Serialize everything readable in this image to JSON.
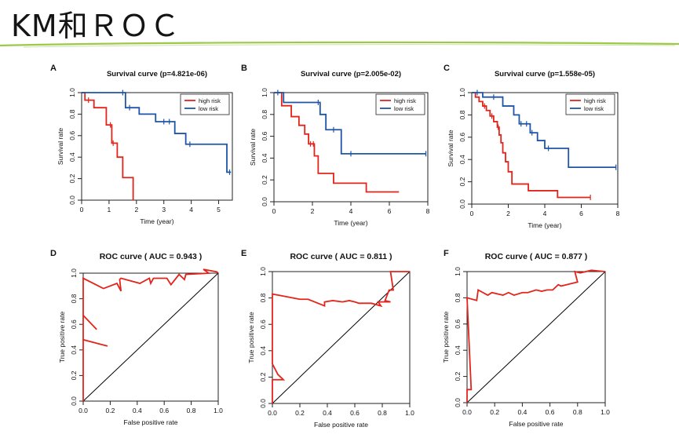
{
  "slide": {
    "title": "KM和ＲＯＣ"
  },
  "colors": {
    "high_risk": "#e3241b",
    "low_risk": "#1f55a6",
    "diagonal": "#000000",
    "accent_line": "#9cc94a"
  },
  "chart_data": [
    {
      "id": "A",
      "type": "line",
      "letter": "A",
      "title": "Survival curve (p=4.821e-06)",
      "xlabel": "Time (year)",
      "ylabel": "Survival rate",
      "xlim": [
        0,
        5.5
      ],
      "ylim": [
        0,
        1.0
      ],
      "xticks": [
        0,
        1,
        2,
        3,
        4,
        5
      ],
      "yticks": [
        0.0,
        0.2,
        0.4,
        0.6,
        0.8,
        1.0
      ],
      "legend": {
        "position": "top-right",
        "entries": [
          "high risk",
          "low risk"
        ]
      },
      "series": [
        {
          "name": "high risk",
          "color_key": "high_risk",
          "step": true,
          "x": [
            0,
            0.12,
            0.45,
            0.9,
            1.1,
            1.3,
            1.5,
            1.88,
            1.88
          ],
          "y": [
            1.0,
            0.93,
            0.86,
            0.7,
            0.53,
            0.4,
            0.21,
            0.21,
            0.0
          ],
          "censor_x": [
            0.25,
            1.05,
            1.15
          ]
        },
        {
          "name": "low risk",
          "color_key": "low_risk",
          "step": true,
          "x": [
            0,
            1.6,
            2.1,
            2.7,
            3.4,
            3.8,
            5.3,
            5.45
          ],
          "y": [
            1.0,
            0.86,
            0.8,
            0.73,
            0.62,
            0.52,
            0.26,
            0.26
          ],
          "censor_x": [
            1.5,
            1.75,
            3.0,
            3.2,
            3.95,
            5.4
          ]
        }
      ]
    },
    {
      "id": "B",
      "type": "line",
      "letter": "B",
      "title": "Survival curve (p=2.005e-02)",
      "xlabel": "Time (year)",
      "ylabel": "Survival rate",
      "xlim": [
        0,
        8
      ],
      "ylim": [
        0,
        1.0
      ],
      "xticks": [
        0,
        2,
        4,
        6,
        8
      ],
      "yticks": [
        0.0,
        0.2,
        0.4,
        0.6,
        0.8,
        1.0
      ],
      "legend": {
        "position": "top-right",
        "entries": [
          "high risk",
          "low risk"
        ]
      },
      "series": [
        {
          "name": "high risk",
          "color_key": "high_risk",
          "step": true,
          "x": [
            0,
            0.4,
            0.9,
            1.3,
            1.6,
            1.8,
            2.1,
            2.3,
            3.1,
            4.8,
            6.5
          ],
          "y": [
            1.0,
            0.88,
            0.78,
            0.7,
            0.62,
            0.53,
            0.42,
            0.26,
            0.17,
            0.09,
            0.09
          ],
          "censor_x": [
            1.9,
            2.05
          ]
        },
        {
          "name": "low risk",
          "color_key": "low_risk",
          "step": true,
          "x": [
            0,
            0.5,
            2.4,
            2.7,
            3.5,
            7.9
          ],
          "y": [
            1.0,
            0.91,
            0.8,
            0.66,
            0.44,
            0.44
          ],
          "censor_x": [
            0.2,
            2.3,
            3.1,
            4.0,
            7.9
          ]
        }
      ]
    },
    {
      "id": "C",
      "type": "line",
      "letter": "C",
      "title": "Survival curve (p=1.558e-05)",
      "xlabel": "Time (year)",
      "ylabel": "Survival rate",
      "xlim": [
        0,
        8
      ],
      "ylim": [
        0,
        1.0
      ],
      "xticks": [
        0,
        2,
        4,
        6,
        8
      ],
      "yticks": [
        0.0,
        0.2,
        0.4,
        0.6,
        0.8,
        1.0
      ],
      "legend": {
        "position": "top-right",
        "entries": [
          "high risk",
          "low risk"
        ]
      },
      "series": [
        {
          "name": "high risk",
          "color_key": "high_risk",
          "step": true,
          "x": [
            0,
            0.2,
            0.4,
            0.6,
            0.8,
            1.0,
            1.2,
            1.4,
            1.5,
            1.6,
            1.7,
            1.85,
            2.0,
            2.2,
            3.1,
            4.7,
            6.5
          ],
          "y": [
            1.0,
            0.96,
            0.92,
            0.88,
            0.84,
            0.79,
            0.74,
            0.69,
            0.62,
            0.55,
            0.46,
            0.38,
            0.29,
            0.18,
            0.12,
            0.06,
            0.06
          ],
          "censor_x": [
            0.7,
            1.1,
            1.45,
            6.5
          ]
        },
        {
          "name": "low risk",
          "color_key": "low_risk",
          "step": true,
          "x": [
            0,
            0.6,
            1.7,
            2.3,
            2.6,
            3.2,
            3.6,
            4.0,
            5.3,
            7.9
          ],
          "y": [
            1.0,
            0.96,
            0.88,
            0.8,
            0.72,
            0.64,
            0.57,
            0.5,
            0.33,
            0.33
          ],
          "censor_x": [
            0.3,
            1.2,
            2.7,
            3.0,
            3.3,
            4.2,
            7.9
          ]
        }
      ]
    },
    {
      "id": "D",
      "type": "line",
      "letter": "D",
      "title": "ROC curve ( AUC =  0.943 )",
      "xlabel": "False positive rate",
      "ylabel": "True positive rate",
      "xlim": [
        0,
        1.0
      ],
      "ylim": [
        0,
        1.0
      ],
      "xticks": [
        0.0,
        0.2,
        0.4,
        0.6,
        0.8,
        1.0
      ],
      "yticks": [
        0.0,
        0.2,
        0.4,
        0.6,
        0.8,
        1.0
      ],
      "diagonal": true,
      "series": [
        {
          "name": "",
          "color_key": "high_risk",
          "step": false,
          "x": [
            0,
            0.0,
            0.18,
            0.0,
            0.0,
            0.1,
            0.0,
            0.0,
            0.15,
            0.25,
            0.28,
            0.27,
            0.28,
            0.42,
            0.49,
            0.5,
            0.52,
            0.62,
            0.65,
            0.71,
            0.75,
            0.76,
            0.93,
            0.89,
            0.99,
            1.0
          ],
          "y": [
            0,
            0.48,
            0.43,
            0.48,
            0.67,
            0.56,
            0.67,
            0.96,
            0.88,
            0.92,
            0.86,
            0.95,
            0.96,
            0.92,
            0.96,
            0.92,
            0.96,
            0.96,
            0.91,
            0.99,
            0.95,
            0.99,
            1.0,
            1.03,
            1.01,
            1.0
          ]
        }
      ]
    },
    {
      "id": "E",
      "type": "line",
      "letter": "E",
      "title": "ROC curve ( AUC =  0.811 )",
      "xlabel": "False positive rate",
      "ylabel": "True positive rate",
      "xlim": [
        0,
        1.0
      ],
      "ylim": [
        0,
        1.0
      ],
      "xticks": [
        0.0,
        0.2,
        0.4,
        0.6,
        0.8,
        1.0
      ],
      "yticks": [
        0.0,
        0.2,
        0.4,
        0.6,
        0.8,
        1.0
      ],
      "diagonal": true,
      "series": [
        {
          "name": "",
          "color_key": "high_risk",
          "step": false,
          "x": [
            0,
            0.0,
            0.08,
            0.04,
            0.0,
            0.0,
            0.1,
            0.2,
            0.26,
            0.38,
            0.38,
            0.44,
            0.51,
            0.56,
            0.6,
            0.63,
            0.72,
            0.79,
            0.77,
            0.86,
            0.82,
            0.85,
            0.88,
            0.86,
            1.0,
            1.0
          ],
          "y": [
            0,
            0.18,
            0.18,
            0.22,
            0.3,
            0.83,
            0.81,
            0.79,
            0.79,
            0.74,
            0.77,
            0.78,
            0.77,
            0.78,
            0.77,
            0.76,
            0.76,
            0.74,
            0.77,
            0.77,
            0.78,
            0.86,
            0.86,
            1.0,
            1.0,
            1.0
          ]
        }
      ]
    },
    {
      "id": "F",
      "type": "line",
      "letter": "F",
      "title": "ROC curve ( AUC =  0.877 )",
      "xlabel": "False positive rate",
      "ylabel": "True positive rate",
      "xlim": [
        0,
        1.0
      ],
      "ylim": [
        0,
        1.0
      ],
      "xticks": [
        0.0,
        0.2,
        0.4,
        0.6,
        0.8,
        1.0
      ],
      "yticks": [
        0.0,
        0.2,
        0.4,
        0.6,
        0.8,
        1.0
      ],
      "diagonal": true,
      "series": [
        {
          "name": "",
          "color_key": "high_risk",
          "step": false,
          "x": [
            0,
            0.0,
            0.03,
            0.0,
            0.0,
            0.07,
            0.08,
            0.15,
            0.18,
            0.26,
            0.3,
            0.34,
            0.4,
            0.44,
            0.5,
            0.54,
            0.58,
            0.62,
            0.66,
            0.68,
            0.72,
            0.76,
            0.8,
            0.78,
            0.82,
            0.9,
            1.0
          ],
          "y": [
            0,
            0.1,
            0.1,
            0.8,
            0.8,
            0.78,
            0.86,
            0.82,
            0.84,
            0.82,
            0.84,
            0.82,
            0.84,
            0.84,
            0.86,
            0.85,
            0.86,
            0.86,
            0.9,
            0.89,
            0.9,
            0.91,
            0.92,
            1.0,
            0.99,
            1.01,
            1.0
          ]
        }
      ]
    }
  ]
}
